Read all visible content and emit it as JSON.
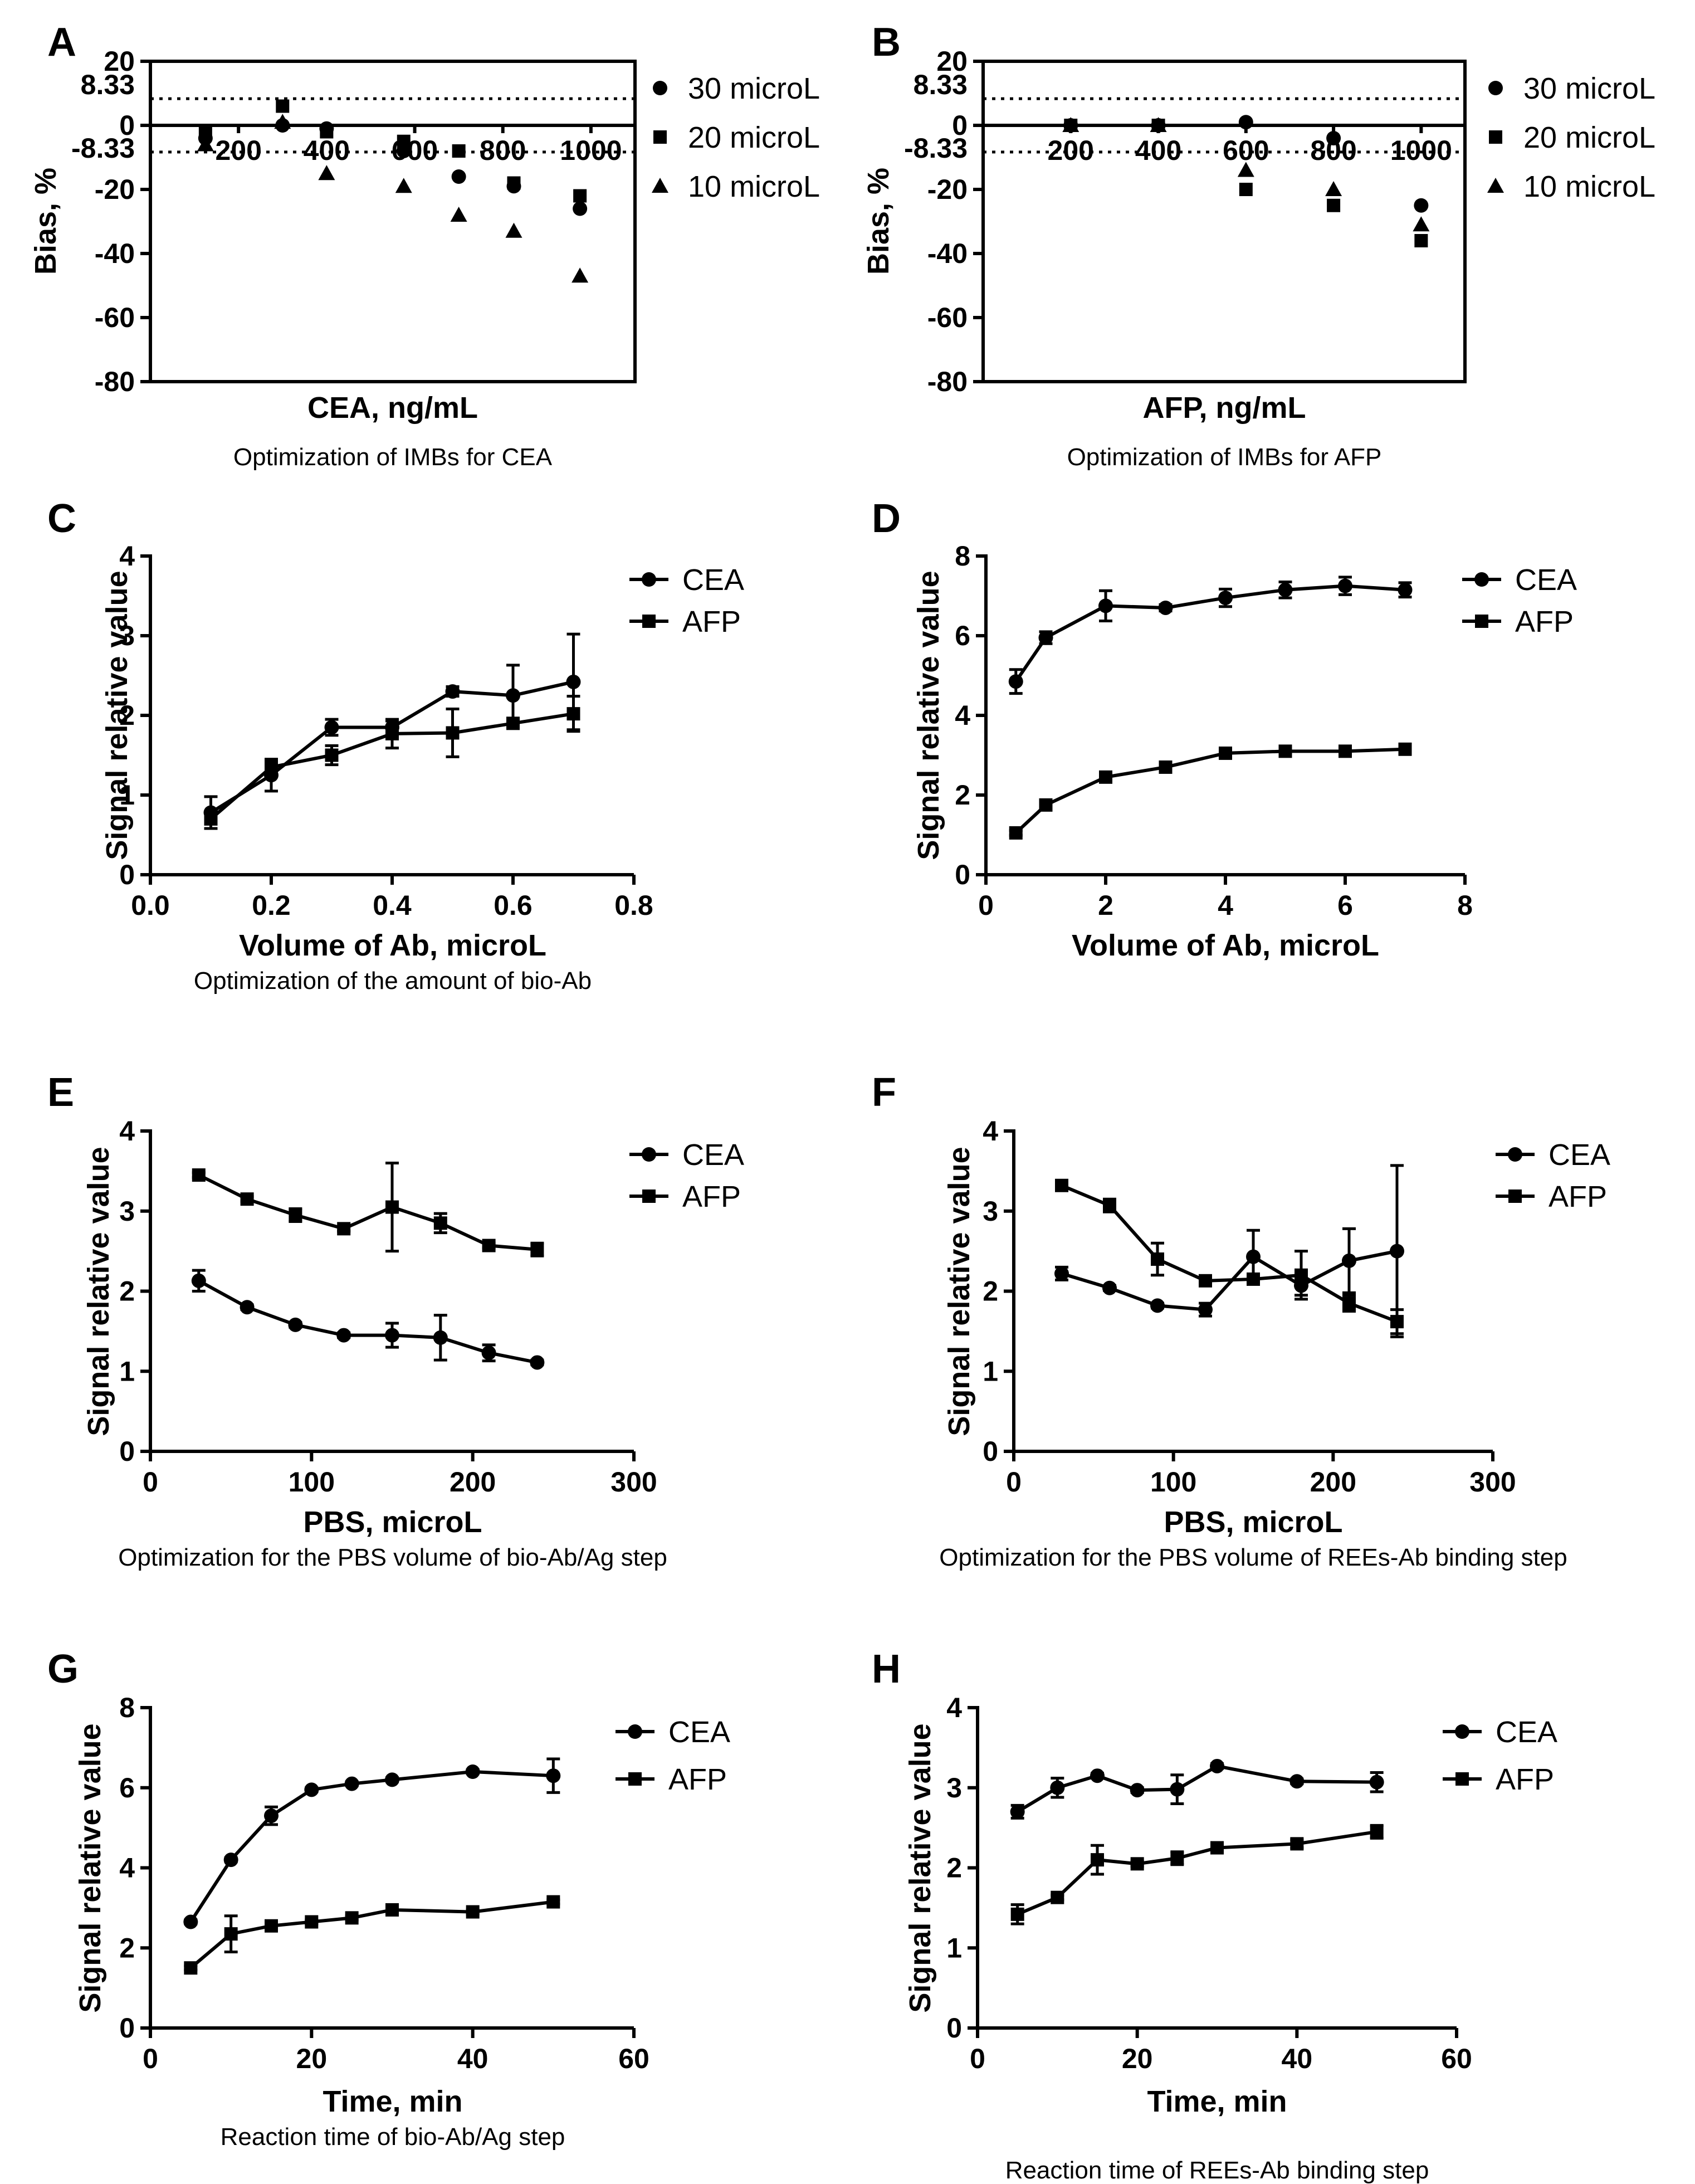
{
  "chart_data": [
    {
      "id": "A",
      "type": "scatter",
      "panel_label": "A",
      "caption": "Optimization of IMBs for CEA",
      "xlabel": "CEA, ng/mL",
      "ylabel": "Bias, %",
      "xlim": [
        0,
        1100
      ],
      "ylim": [
        -80,
        20
      ],
      "yticks": [
        20,
        0,
        -20,
        -40,
        -60,
        -80
      ],
      "xticks": [
        200,
        400,
        600,
        800,
        1000
      ],
      "xtick_labels": [
        "200",
        "400",
        "600",
        "800",
        "1000"
      ],
      "xticks_on_zero_line": true,
      "ref_lines": [
        {
          "value": 8.33,
          "label": "8.33"
        },
        {
          "value": -8.33,
          "label": "-8.33"
        }
      ],
      "series": [
        {
          "name": "30 microL",
          "marker": "circle",
          "x": [
            125,
            300,
            400,
            575,
            700,
            825,
            975
          ],
          "y": [
            -4,
            0,
            -1,
            -8,
            -16,
            -19,
            -26
          ]
        },
        {
          "name": "20 microL",
          "marker": "square",
          "x": [
            125,
            300,
            400,
            575,
            700,
            825,
            975
          ],
          "y": [
            -2,
            6,
            -2,
            -5,
            -8,
            -18,
            -22
          ]
        },
        {
          "name": "10 microL",
          "marker": "triangle",
          "x": [
            125,
            300,
            400,
            575,
            700,
            825,
            975
          ],
          "y": [
            -6,
            1,
            -15,
            -19,
            -28,
            -33,
            -47
          ]
        }
      ]
    },
    {
      "id": "B",
      "type": "scatter",
      "panel_label": "B",
      "caption": "Optimization of IMBs for AFP",
      "xlabel": "AFP, ng/mL",
      "ylabel": "Bias, %",
      "xlim": [
        0,
        1100
      ],
      "ylim": [
        -80,
        20
      ],
      "yticks": [
        20,
        0,
        -20,
        -40,
        -60,
        -80
      ],
      "xticks": [
        200,
        400,
        600,
        800,
        1000
      ],
      "xtick_labels": [
        "200",
        "400",
        "600",
        "800",
        "1000"
      ],
      "xticks_on_zero_line": true,
      "ref_lines": [
        {
          "value": 8.33,
          "label": "8.33"
        },
        {
          "value": -8.33,
          "label": "-8.33"
        }
      ],
      "series": [
        {
          "name": "30 microL",
          "marker": "circle",
          "x": [
            200,
            400,
            600,
            800,
            1000
          ],
          "y": [
            0,
            0,
            1,
            -4,
            -25
          ]
        },
        {
          "name": "20 microL",
          "marker": "square",
          "x": [
            200,
            400,
            600,
            800,
            1000
          ],
          "y": [
            0,
            0,
            -20,
            -25,
            -36
          ]
        },
        {
          "name": "10 microL",
          "marker": "triangle",
          "x": [
            200,
            400,
            600,
            800,
            1000
          ],
          "y": [
            0,
            0,
            -14,
            -20,
            -31
          ]
        }
      ]
    },
    {
      "id": "C",
      "type": "line",
      "panel_label": "C",
      "caption": "Optimization of the amount of bio-Ab",
      "xlabel": "Volume of Ab, microL",
      "ylabel": "Signal relative value",
      "xlim": [
        0,
        0.8
      ],
      "ylim": [
        0,
        4
      ],
      "xticks": [
        0,
        0.2,
        0.4,
        0.6,
        0.8
      ],
      "xtick_labels": [
        "0.0",
        "0.2",
        "0.4",
        "0.6",
        "0.8"
      ],
      "yticks": [
        0,
        1,
        2,
        3,
        4
      ],
      "series": [
        {
          "name": "CEA",
          "marker": "circle",
          "x": [
            0.1,
            0.2,
            0.3,
            0.4,
            0.5,
            0.6,
            0.7
          ],
          "y": [
            0.78,
            1.25,
            1.85,
            1.85,
            2.3,
            2.25,
            2.42
          ],
          "err": [
            0.2,
            0.2,
            0.1,
            0.08,
            0.06,
            0.38,
            0.6
          ]
        },
        {
          "name": "AFP",
          "marker": "square",
          "x": [
            0.1,
            0.2,
            0.3,
            0.4,
            0.5,
            0.6,
            0.7
          ],
          "y": [
            0.7,
            1.35,
            1.5,
            1.77,
            1.78,
            1.9,
            2.02
          ],
          "err": [
            0.06,
            0.06,
            0.12,
            0.18,
            0.3,
            0.06,
            0.22
          ]
        }
      ]
    },
    {
      "id": "D",
      "type": "line",
      "panel_label": "D",
      "caption": "",
      "xlabel": "Volume of Ab, microL",
      "ylabel": "Signal relative value",
      "xlim": [
        0,
        8
      ],
      "ylim": [
        0,
        8
      ],
      "xticks": [
        0,
        2,
        4,
        6,
        8
      ],
      "xtick_labels": [
        "0",
        "2",
        "4",
        "6",
        "8"
      ],
      "yticks": [
        0,
        2,
        4,
        6,
        8
      ],
      "series": [
        {
          "name": "CEA",
          "marker": "circle",
          "x": [
            0.5,
            1,
            2,
            3,
            4,
            5,
            6,
            7
          ],
          "y": [
            4.85,
            5.95,
            6.75,
            6.7,
            6.95,
            7.15,
            7.25,
            7.15
          ],
          "err": [
            0.3,
            0.15,
            0.38,
            0.08,
            0.22,
            0.2,
            0.22,
            0.18
          ]
        },
        {
          "name": "AFP",
          "marker": "square",
          "x": [
            0.5,
            1,
            2,
            3,
            4,
            5,
            6,
            7
          ],
          "y": [
            1.05,
            1.75,
            2.45,
            2.7,
            3.05,
            3.1,
            3.1,
            3.15
          ],
          "err": [
            0.06,
            0.06,
            0.06,
            0.06,
            0.06,
            0.06,
            0.06,
            0.06
          ]
        }
      ]
    },
    {
      "id": "E",
      "type": "line",
      "panel_label": "E",
      "caption": "Optimization for the PBS volume of bio-Ab/Ag step",
      "xlabel": "PBS, microL",
      "ylabel": "Signal relative value",
      "xlim": [
        0,
        300
      ],
      "ylim": [
        0,
        4
      ],
      "xticks": [
        0,
        100,
        200,
        300
      ],
      "xtick_labels": [
        "0",
        "100",
        "200",
        "300"
      ],
      "yticks": [
        0,
        1,
        2,
        3,
        4
      ],
      "series": [
        {
          "name": "CEA",
          "marker": "circle",
          "x": [
            30,
            60,
            90,
            120,
            150,
            180,
            210,
            240
          ],
          "y": [
            2.13,
            1.8,
            1.58,
            1.45,
            1.45,
            1.42,
            1.23,
            1.11
          ],
          "err": [
            0.13,
            0.03,
            0.03,
            0.03,
            0.15,
            0.28,
            0.1,
            0.03
          ]
        },
        {
          "name": "AFP",
          "marker": "square",
          "x": [
            30,
            60,
            90,
            120,
            150,
            180,
            210,
            240
          ],
          "y": [
            3.45,
            3.15,
            2.95,
            2.78,
            3.05,
            2.85,
            2.57,
            2.52
          ],
          "err": [
            0.03,
            0.03,
            0.08,
            0.03,
            0.55,
            0.12,
            0.03,
            0.08
          ]
        }
      ]
    },
    {
      "id": "F",
      "type": "line",
      "panel_label": "F",
      "caption": "Optimization for the PBS volume of REEs-Ab binding step",
      "xlabel": "PBS, microL",
      "ylabel": "Signal relative value",
      "xlim": [
        0,
        300
      ],
      "ylim": [
        0,
        4
      ],
      "xticks": [
        0,
        100,
        200,
        300
      ],
      "xtick_labels": [
        "0",
        "100",
        "200",
        "300"
      ],
      "yticks": [
        0,
        1,
        2,
        3,
        4
      ],
      "series": [
        {
          "name": "CEA",
          "marker": "circle",
          "x": [
            30,
            60,
            90,
            120,
            150,
            180,
            210,
            240
          ],
          "y": [
            2.22,
            2.04,
            1.82,
            1.77,
            2.43,
            2.07,
            2.38,
            2.5
          ],
          "err": [
            0.08,
            0.03,
            0.03,
            0.08,
            0.33,
            0.12,
            0.4,
            1.07
          ]
        },
        {
          "name": "AFP",
          "marker": "square",
          "x": [
            30,
            60,
            90,
            120,
            150,
            180,
            210,
            240
          ],
          "y": [
            3.32,
            3.07,
            2.4,
            2.13,
            2.15,
            2.2,
            1.85,
            1.62
          ],
          "err": [
            0.03,
            0.08,
            0.2,
            0.05,
            0.05,
            0.3,
            0.1,
            0.15
          ]
        }
      ]
    },
    {
      "id": "G",
      "type": "line",
      "panel_label": "G",
      "caption": "Reaction time of bio-Ab/Ag step",
      "xlabel": "Time, min",
      "ylabel": "Signal relative value",
      "xlim": [
        0,
        60
      ],
      "ylim": [
        0,
        8
      ],
      "xticks": [
        0,
        20,
        40,
        60
      ],
      "xtick_labels": [
        "0",
        "20",
        "40",
        "60"
      ],
      "yticks": [
        0,
        2,
        4,
        6,
        8
      ],
      "series": [
        {
          "name": "CEA",
          "marker": "circle",
          "x": [
            5,
            10,
            15,
            20,
            25,
            30,
            40,
            50
          ],
          "y": [
            2.65,
            4.2,
            5.3,
            5.95,
            6.1,
            6.2,
            6.4,
            6.3
          ],
          "err": [
            0.05,
            0.05,
            0.22,
            0.05,
            0.05,
            0.05,
            0.05,
            0.42
          ]
        },
        {
          "name": "AFP",
          "marker": "square",
          "x": [
            5,
            10,
            15,
            20,
            25,
            30,
            40,
            50
          ],
          "y": [
            1.5,
            2.35,
            2.55,
            2.65,
            2.75,
            2.95,
            2.9,
            3.15
          ],
          "err": [
            0.05,
            0.45,
            0.05,
            0.05,
            0.05,
            0.05,
            0.05,
            0.05
          ]
        }
      ]
    },
    {
      "id": "H",
      "type": "line",
      "panel_label": "H",
      "caption": "Reaction time of REEs-Ab binding step",
      "xlabel": "Time, min",
      "ylabel": "Signal relative value",
      "xlim": [
        0,
        60
      ],
      "ylim": [
        0,
        4
      ],
      "xticks": [
        0,
        20,
        40,
        60
      ],
      "xtick_labels": [
        "0",
        "20",
        "40",
        "60"
      ],
      "yticks": [
        0,
        1,
        2,
        3,
        4
      ],
      "series": [
        {
          "name": "CEA",
          "marker": "circle",
          "x": [
            5,
            10,
            15,
            20,
            25,
            30,
            40,
            50
          ],
          "y": [
            2.7,
            3.0,
            3.15,
            2.97,
            2.98,
            3.27,
            3.08,
            3.07
          ],
          "err": [
            0.08,
            0.12,
            0.03,
            0.03,
            0.18,
            0.03,
            0.03,
            0.12
          ]
        },
        {
          "name": "AFP",
          "marker": "square",
          "x": [
            5,
            10,
            15,
            20,
            25,
            30,
            40,
            50
          ],
          "y": [
            1.42,
            1.63,
            2.1,
            2.05,
            2.12,
            2.25,
            2.3,
            2.45
          ],
          "err": [
            0.12,
            0.03,
            0.18,
            0.03,
            0.08,
            0.03,
            0.05,
            0.08
          ]
        }
      ]
    }
  ]
}
